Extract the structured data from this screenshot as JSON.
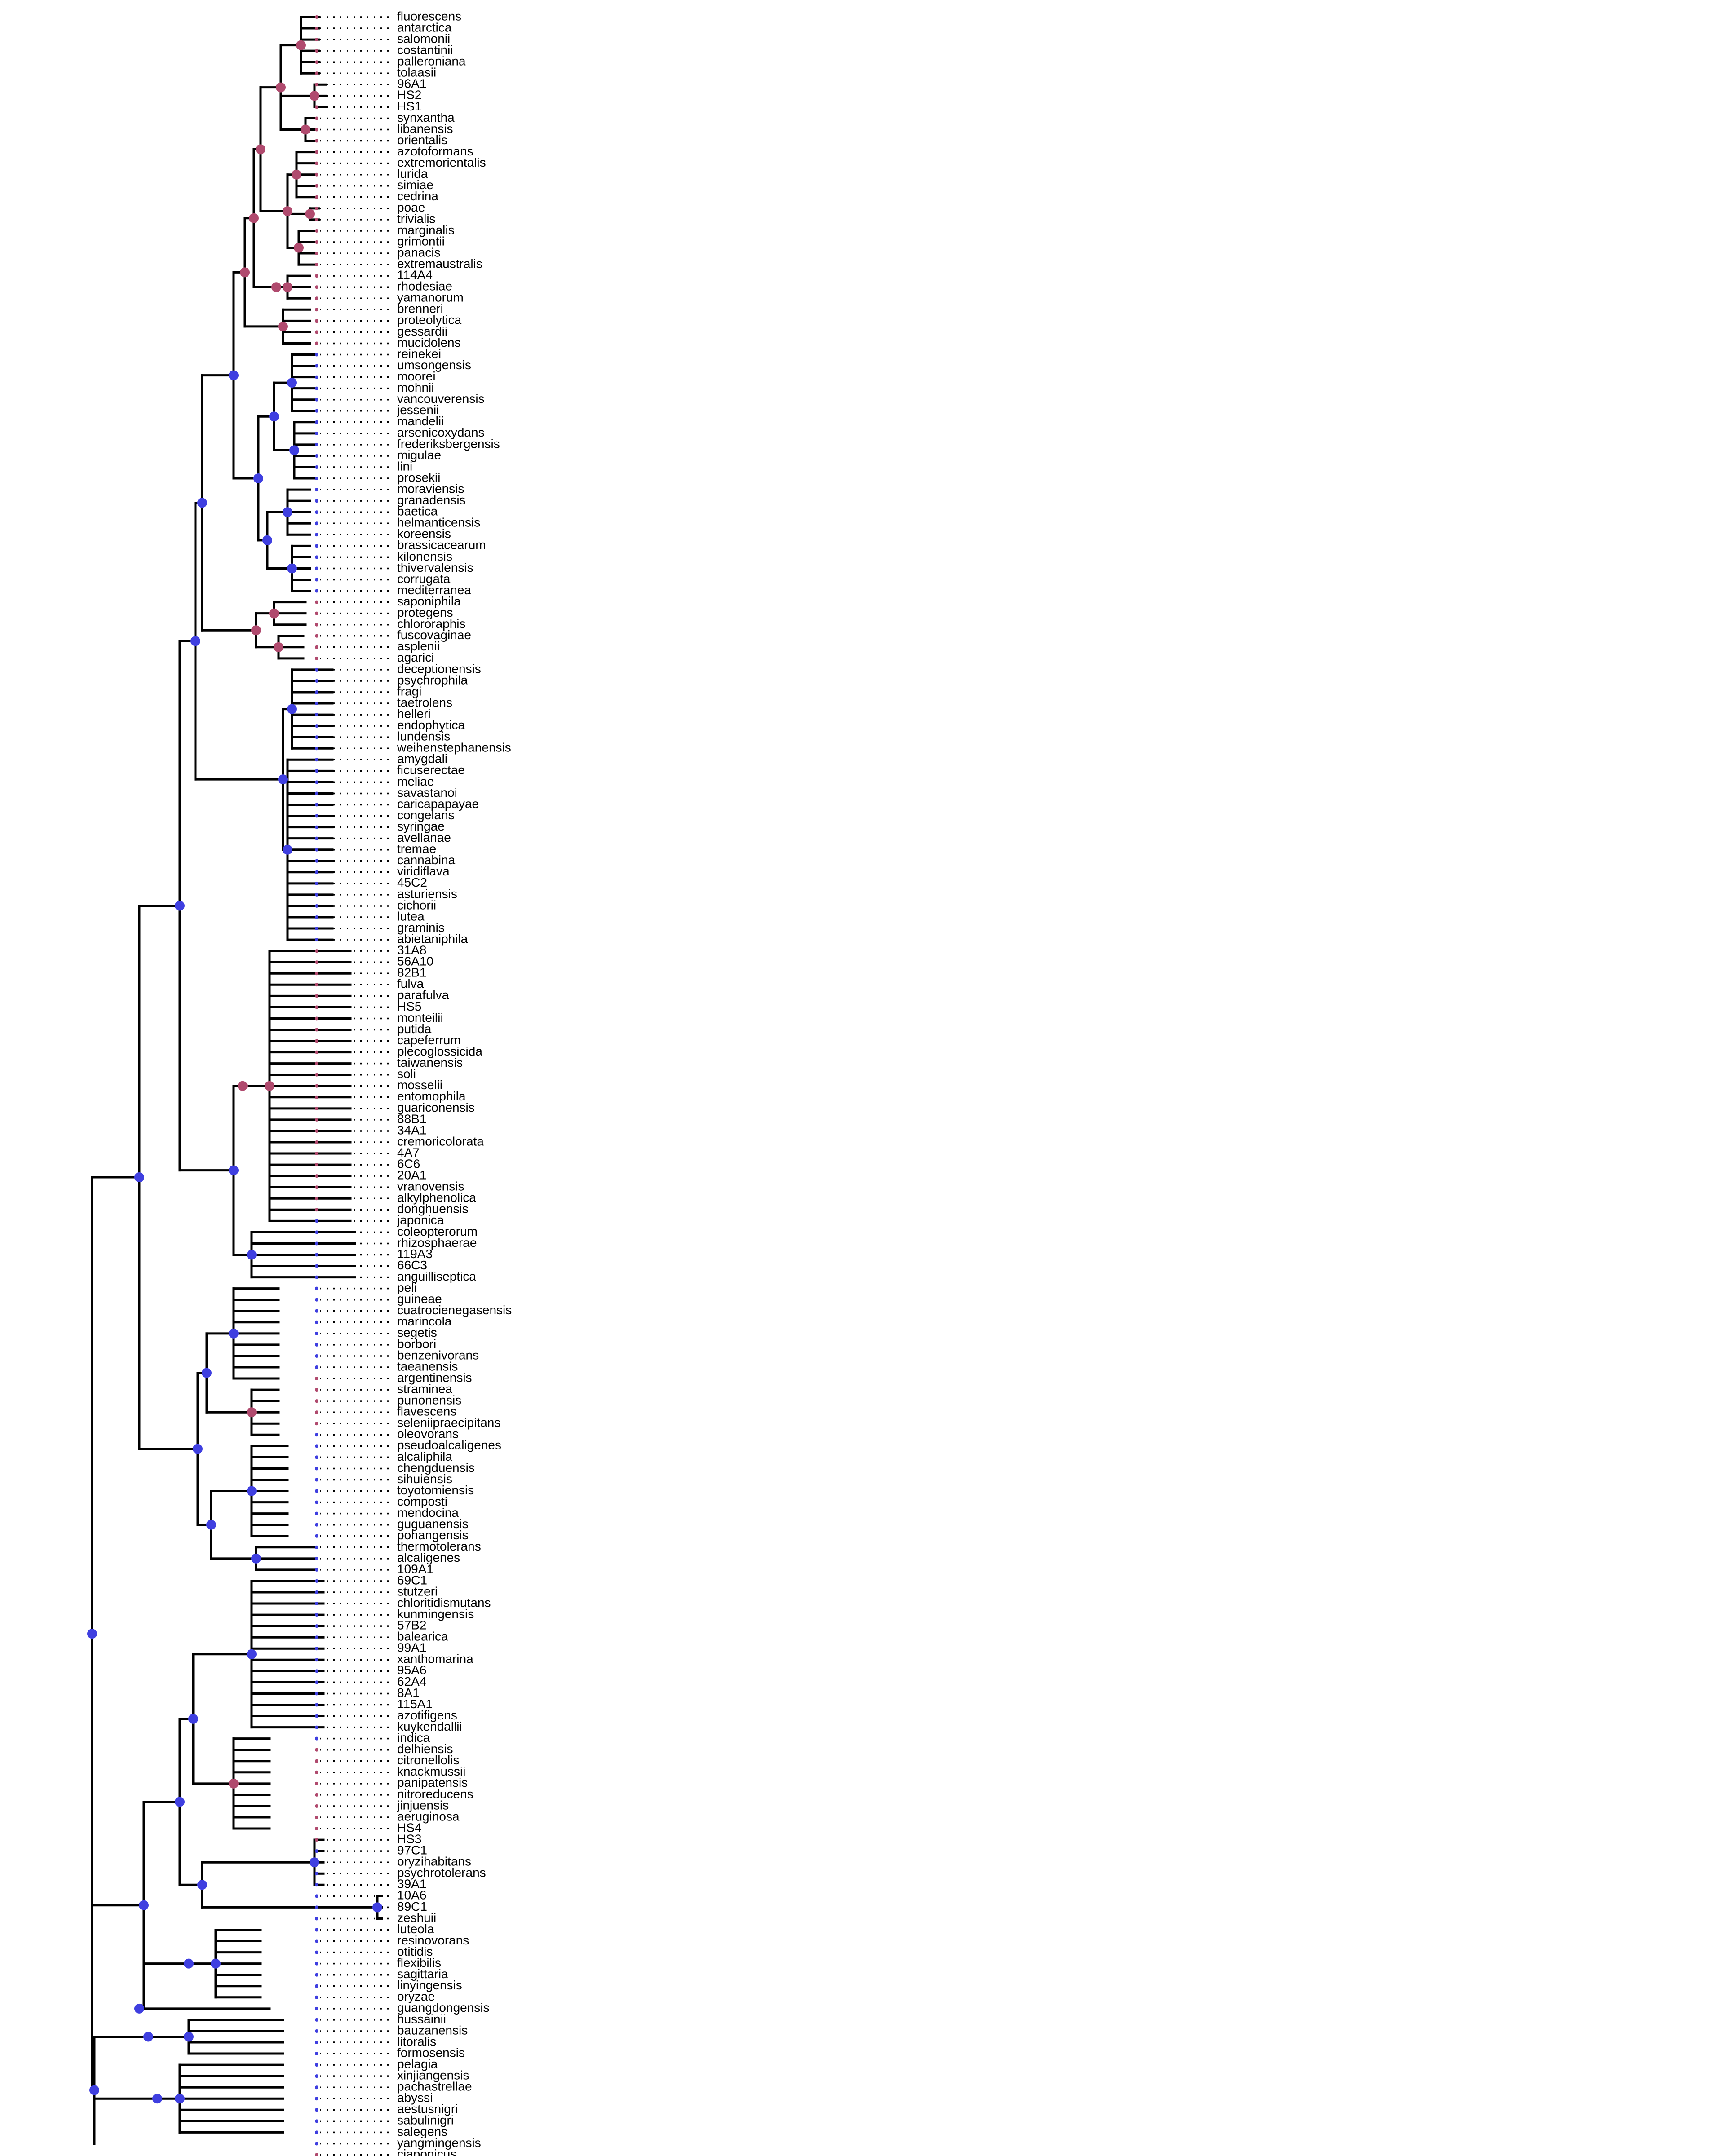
{
  "figure": {
    "type": "phylogenetic-tree",
    "layout": "rectangular",
    "colors": {
      "branch": "#000000",
      "clade_blue": "#3f3fe0",
      "clade_red": "#b04a6e",
      "background": "#ffffff"
    }
  },
  "tips": [
    {
      "label": "fluorescens",
      "c": "r"
    },
    {
      "label": "antarctica",
      "c": "r"
    },
    {
      "label": "salomonii",
      "c": "r"
    },
    {
      "label": "costantinii",
      "c": "r"
    },
    {
      "label": "palleroniana",
      "c": "r"
    },
    {
      "label": "tolaasii",
      "c": "r"
    },
    {
      "label": "96A1",
      "c": "r"
    },
    {
      "label": "HS2",
      "c": "r"
    },
    {
      "label": "HS1",
      "c": "r"
    },
    {
      "label": "synxantha",
      "c": "r"
    },
    {
      "label": "libanensis",
      "c": "r"
    },
    {
      "label": "orientalis",
      "c": "r"
    },
    {
      "label": "azotoformans",
      "c": "r"
    },
    {
      "label": "extremorientalis",
      "c": "r"
    },
    {
      "label": "lurida",
      "c": "r"
    },
    {
      "label": "simiae",
      "c": "r"
    },
    {
      "label": "cedrina",
      "c": "r"
    },
    {
      "label": "poae",
      "c": "r"
    },
    {
      "label": "trivialis",
      "c": "r"
    },
    {
      "label": "marginalis",
      "c": "r"
    },
    {
      "label": "grimontii",
      "c": "r"
    },
    {
      "label": "panacis",
      "c": "r"
    },
    {
      "label": "extremaustralis",
      "c": "r"
    },
    {
      "label": "114A4",
      "c": "r"
    },
    {
      "label": "rhodesiae",
      "c": "r"
    },
    {
      "label": "yamanorum",
      "c": "r"
    },
    {
      "label": "brenneri",
      "c": "r"
    },
    {
      "label": "proteolytica",
      "c": "r"
    },
    {
      "label": "gessardii",
      "c": "r"
    },
    {
      "label": "mucidolens",
      "c": "r"
    },
    {
      "label": "reinekei",
      "c": "b"
    },
    {
      "label": "umsongensis",
      "c": "b"
    },
    {
      "label": "moorei",
      "c": "b"
    },
    {
      "label": "mohnii",
      "c": "b"
    },
    {
      "label": "vancouverensis",
      "c": "b"
    },
    {
      "label": "jessenii",
      "c": "b"
    },
    {
      "label": "mandelii",
      "c": "b"
    },
    {
      "label": "arsenicoxydans",
      "c": "b"
    },
    {
      "label": "frederiksbergensis",
      "c": "b"
    },
    {
      "label": "migulae",
      "c": "b"
    },
    {
      "label": "lini",
      "c": "b"
    },
    {
      "label": "prosekii",
      "c": "b"
    },
    {
      "label": "moraviensis",
      "c": "b"
    },
    {
      "label": "granadensis",
      "c": "b"
    },
    {
      "label": "baetica",
      "c": "b"
    },
    {
      "label": "helmanticensis",
      "c": "b"
    },
    {
      "label": "koreensis",
      "c": "b"
    },
    {
      "label": "brassicacearum",
      "c": "b"
    },
    {
      "label": "kilonensis",
      "c": "b"
    },
    {
      "label": "thivervalensis",
      "c": "b"
    },
    {
      "label": "corrugata",
      "c": "b"
    },
    {
      "label": "mediterranea",
      "c": "b"
    },
    {
      "label": "saponiphila",
      "c": "r"
    },
    {
      "label": "protegens",
      "c": "r"
    },
    {
      "label": "chlororaphis",
      "c": "r"
    },
    {
      "label": "fuscovaginae",
      "c": "r"
    },
    {
      "label": "asplenii",
      "c": "r"
    },
    {
      "label": "agarici",
      "c": "r"
    },
    {
      "label": "deceptionensis",
      "c": "b"
    },
    {
      "label": "psychrophila",
      "c": "b"
    },
    {
      "label": "fragi",
      "c": "b"
    },
    {
      "label": "taetrolens",
      "c": "b"
    },
    {
      "label": "helleri",
      "c": "b"
    },
    {
      "label": "endophytica",
      "c": "b"
    },
    {
      "label": "lundensis",
      "c": "b"
    },
    {
      "label": "weihenstephanensis",
      "c": "b"
    },
    {
      "label": "amygdali",
      "c": "b"
    },
    {
      "label": "ficuserectae",
      "c": "b"
    },
    {
      "label": "meliae",
      "c": "b"
    },
    {
      "label": "savastanoi",
      "c": "b"
    },
    {
      "label": "caricapapayae",
      "c": "b"
    },
    {
      "label": "congelans",
      "c": "b"
    },
    {
      "label": "syringae",
      "c": "b"
    },
    {
      "label": "avellanae",
      "c": "b"
    },
    {
      "label": "tremae",
      "c": "b"
    },
    {
      "label": "cannabina",
      "c": "b"
    },
    {
      "label": "viridiflava",
      "c": "b"
    },
    {
      "label": "45C2",
      "c": "b"
    },
    {
      "label": "asturiensis",
      "c": "b"
    },
    {
      "label": "cichorii",
      "c": "b"
    },
    {
      "label": "lutea",
      "c": "b"
    },
    {
      "label": "graminis",
      "c": "b"
    },
    {
      "label": "abietaniphila",
      "c": "b"
    },
    {
      "label": "31A8",
      "c": "r"
    },
    {
      "label": "56A10",
      "c": "r"
    },
    {
      "label": "82B1",
      "c": "r"
    },
    {
      "label": "fulva",
      "c": "r"
    },
    {
      "label": "parafulva",
      "c": "r"
    },
    {
      "label": "HS5",
      "c": "r"
    },
    {
      "label": "monteilii",
      "c": "r"
    },
    {
      "label": "putida",
      "c": "r"
    },
    {
      "label": "capeferrum",
      "c": "r"
    },
    {
      "label": "plecoglossicida",
      "c": "r"
    },
    {
      "label": "taiwanensis",
      "c": "r"
    },
    {
      "label": "soli",
      "c": "r"
    },
    {
      "label": "mosselii",
      "c": "r"
    },
    {
      "label": "entomophila",
      "c": "r"
    },
    {
      "label": "guariconensis",
      "c": "r"
    },
    {
      "label": "88B1",
      "c": "r"
    },
    {
      "label": "34A1",
      "c": "r"
    },
    {
      "label": "cremoricolorata",
      "c": "r"
    },
    {
      "label": "4A7",
      "c": "r"
    },
    {
      "label": "6C6",
      "c": "r"
    },
    {
      "label": "20A1",
      "c": "r"
    },
    {
      "label": "vranovensis",
      "c": "r"
    },
    {
      "label": "alkylphenolica",
      "c": "r"
    },
    {
      "label": "donghuensis",
      "c": "r"
    },
    {
      "label": "japonica",
      "c": "b"
    },
    {
      "label": "coleopterorum",
      "c": "b"
    },
    {
      "label": "rhizosphaerae",
      "c": "b"
    },
    {
      "label": "119A3",
      "c": "b"
    },
    {
      "label": "66C3",
      "c": "b"
    },
    {
      "label": "anguilliseptica",
      "c": "b"
    },
    {
      "label": "peli",
      "c": "b"
    },
    {
      "label": "guineae",
      "c": "b"
    },
    {
      "label": "cuatrocienegasensis",
      "c": "b"
    },
    {
      "label": "marincola",
      "c": "b"
    },
    {
      "label": "segetis",
      "c": "b"
    },
    {
      "label": "borbori",
      "c": "b"
    },
    {
      "label": "benzenivorans",
      "c": "b"
    },
    {
      "label": "taeanensis",
      "c": "b"
    },
    {
      "label": "argentinensis",
      "c": "r"
    },
    {
      "label": "straminea",
      "c": "r"
    },
    {
      "label": "punonensis",
      "c": "r"
    },
    {
      "label": "flavescens",
      "c": "r"
    },
    {
      "label": "seleniipraecipitans",
      "c": "r"
    },
    {
      "label": "oleovorans",
      "c": "b"
    },
    {
      "label": "pseudoalcaligenes",
      "c": "b"
    },
    {
      "label": "alcaliphila",
      "c": "b"
    },
    {
      "label": "chengduensis",
      "c": "b"
    },
    {
      "label": "sihuiensis",
      "c": "b"
    },
    {
      "label": "toyotomiensis",
      "c": "b"
    },
    {
      "label": "composti",
      "c": "b"
    },
    {
      "label": "mendocina",
      "c": "b"
    },
    {
      "label": "guguanensis",
      "c": "b"
    },
    {
      "label": "pohangensis",
      "c": "b"
    },
    {
      "label": "thermotolerans",
      "c": "b"
    },
    {
      "label": "alcaligenes",
      "c": "b"
    },
    {
      "label": "109A1",
      "c": "b"
    },
    {
      "label": "69C1",
      "c": "b"
    },
    {
      "label": "stutzeri",
      "c": "b"
    },
    {
      "label": "chloritidismutans",
      "c": "b"
    },
    {
      "label": "kunmingensis",
      "c": "b"
    },
    {
      "label": "57B2",
      "c": "b"
    },
    {
      "label": "balearica",
      "c": "b"
    },
    {
      "label": "99A1",
      "c": "b"
    },
    {
      "label": "xanthomarina",
      "c": "b"
    },
    {
      "label": "95A6",
      "c": "b"
    },
    {
      "label": "62A4",
      "c": "b"
    },
    {
      "label": "8A1",
      "c": "b"
    },
    {
      "label": "115A1",
      "c": "b"
    },
    {
      "label": "azotifigens",
      "c": "b"
    },
    {
      "label": "kuykendallii",
      "c": "b"
    },
    {
      "label": "indica",
      "c": "b"
    },
    {
      "label": "delhiensis",
      "c": "r"
    },
    {
      "label": "citronellolis",
      "c": "r"
    },
    {
      "label": "knackmussii",
      "c": "r"
    },
    {
      "label": "panipatensis",
      "c": "r"
    },
    {
      "label": "nitroreducens",
      "c": "r"
    },
    {
      "label": "jinjuensis",
      "c": "r"
    },
    {
      "label": "aeruginosa",
      "c": "r"
    },
    {
      "label": "HS4",
      "c": "r"
    },
    {
      "label": "HS3",
      "c": "r"
    },
    {
      "label": "97C1",
      "c": "b"
    },
    {
      "label": "oryzihabitans",
      "c": "b"
    },
    {
      "label": "psychrotolerans",
      "c": "b"
    },
    {
      "label": "39A1",
      "c": "b"
    },
    {
      "label": "10A6",
      "c": "b"
    },
    {
      "label": "89C1",
      "c": "b"
    },
    {
      "label": "zeshuii",
      "c": "b"
    },
    {
      "label": "luteola",
      "c": "b"
    },
    {
      "label": "resinovorans",
      "c": "b"
    },
    {
      "label": "otitidis",
      "c": "b"
    },
    {
      "label": "flexibilis",
      "c": "b"
    },
    {
      "label": "sagittaria",
      "c": "b"
    },
    {
      "label": "linyingensis",
      "c": "b"
    },
    {
      "label": "oryzae",
      "c": "b"
    },
    {
      "label": "guangdongensis",
      "c": "b"
    },
    {
      "label": "hussainii",
      "c": "b"
    },
    {
      "label": "bauzanensis",
      "c": "b"
    },
    {
      "label": "litoralis",
      "c": "b"
    },
    {
      "label": "formosensis",
      "c": "b"
    },
    {
      "label": "pelagia",
      "c": "b"
    },
    {
      "label": "xinjiangensis",
      "c": "b"
    },
    {
      "label": "pachastrellae",
      "c": "b"
    },
    {
      "label": "abyssi",
      "c": "b"
    },
    {
      "label": "aestusnigri",
      "c": "b"
    },
    {
      "label": "sabulinigri",
      "c": "b"
    },
    {
      "label": "salegens",
      "c": "b"
    },
    {
      "label": "yangmingensis",
      "c": "b"
    },
    {
      "label": "cjaponicus",
      "c": "r"
    }
  ]
}
